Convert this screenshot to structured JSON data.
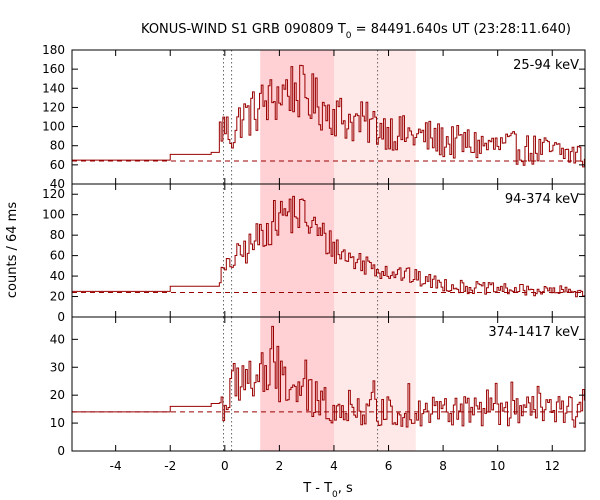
{
  "chart_data": {
    "type": "line",
    "title_main": "KONUS-WIND S1 GRB 090809 T",
    "title_sub": "0",
    "title_rest": " = 84491.640s UT (23:28:11.640)",
    "xlabel_main": "T - T",
    "xlabel_sub": "0",
    "xlabel_rest": ", s",
    "ylabel": "counts / 64 ms",
    "xlim": [
      -5.6,
      13.2
    ],
    "x_ticks": [
      -4,
      -2,
      0,
      2,
      4,
      6,
      8,
      10,
      12
    ],
    "x_tick_labels": [
      "-4",
      "-2",
      "0",
      "2",
      "4",
      "6",
      "8",
      "10",
      "12"
    ],
    "colors": {
      "data": "#990000",
      "light_band": "#ffe8e8",
      "dark_band": "#ffd0d4",
      "frame": "#000000"
    },
    "shaded_intervals": [
      {
        "start": 1.3,
        "end": 7.0,
        "tone": "light"
      },
      {
        "start": 1.3,
        "end": 4.0,
        "tone": "dark"
      }
    ],
    "vertical_markers": [
      {
        "x": -0.05,
        "style": "dotted"
      },
      {
        "x": 0.25,
        "style": "dotted"
      },
      {
        "x": 5.6,
        "style": "dotted"
      }
    ],
    "panels": [
      {
        "label": "25-94 keV",
        "ylim": [
          40,
          180
        ],
        "y_ticks": [
          40,
          60,
          80,
          100,
          120,
          140,
          160,
          180
        ],
        "y_tick_labels": [
          "40",
          "60",
          "80",
          "100",
          "120",
          "140",
          "160",
          "180"
        ],
        "background_level": 64,
        "series": [
          {
            "x": [
              -5.6,
              -2.0
            ],
            "y": [
              65,
              65
            ]
          },
          {
            "x": [
              -2.0,
              -0.5
            ],
            "y": [
              71,
              71
            ]
          },
          {
            "x": [
              -0.5,
              -0.2
            ],
            "y": [
              73,
              73
            ]
          },
          {
            "x": [
              -0.2,
              0.0,
              0.3,
              0.6,
              1.0,
              1.3,
              1.6,
              2.0,
              2.3,
              2.6,
              3.0,
              3.3,
              3.7,
              4.0,
              4.4,
              4.8,
              5.2,
              5.6,
              6.0,
              6.5,
              7.0,
              7.5,
              8.0,
              8.5,
              9.0,
              9.5,
              10.0,
              10.5,
              11.0,
              11.5,
              12.0,
              12.5,
              13.0,
              13.2
            ],
            "y": [
              95,
              100,
              90,
              110,
              113,
              122,
              125,
              133,
              140,
              138,
              132,
              126,
              118,
              115,
              107,
              105,
              103,
              100,
              97,
              92,
              90,
              88,
              85,
              83,
              82,
              80,
              79,
              78,
              76,
              75,
              74,
              72,
              70,
              68
            ]
          }
        ]
      },
      {
        "label": "94-374 keV",
        "ylim": [
          0,
          130
        ],
        "y_ticks": [
          0,
          20,
          40,
          60,
          80,
          100,
          120
        ],
        "y_tick_labels": [
          "0",
          "20",
          "40",
          "60",
          "80",
          "100",
          "120"
        ],
        "background_level": 24,
        "series": [
          {
            "x": [
              -5.6,
              -2.0
            ],
            "y": [
              25,
              25
            ]
          },
          {
            "x": [
              -2.0,
              -0.5
            ],
            "y": [
              30,
              30
            ]
          },
          {
            "x": [
              -0.5,
              -0.2
            ],
            "y": [
              30,
              30
            ]
          },
          {
            "x": [
              -0.2,
              0.0,
              0.3,
              0.6,
              1.0,
              1.3,
              1.6,
              2.0,
              2.3,
              2.6,
              3.0,
              3.3,
              3.7,
              4.0,
              4.4,
              4.8,
              5.2,
              5.6,
              6.0,
              6.5,
              7.0,
              7.5,
              8.0,
              8.5,
              9.0,
              9.5,
              10.0,
              10.5,
              11.0,
              11.5,
              12.0,
              12.5,
              13.0,
              13.2
            ],
            "y": [
              40,
              45,
              55,
              62,
              70,
              80,
              88,
              98,
              102,
              103,
              96,
              86,
              75,
              68,
              60,
              55,
              52,
              48,
              45,
              42,
              38,
              35,
              32,
              30,
              29,
              28,
              27,
              27,
              26,
              26,
              25,
              25,
              25,
              25
            ]
          }
        ]
      },
      {
        "label": "374-1417 keV",
        "ylim": [
          0,
          48
        ],
        "y_ticks": [
          0,
          10,
          20,
          30,
          40
        ],
        "y_tick_labels": [
          "0",
          "10",
          "20",
          "30",
          "40"
        ],
        "background_level": 14,
        "series": [
          {
            "x": [
              -5.6,
              -2.0
            ],
            "y": [
              14,
              14
            ]
          },
          {
            "x": [
              -2.0,
              -0.5
            ],
            "y": [
              16,
              16
            ]
          },
          {
            "x": [
              -0.5,
              -0.2
            ],
            "y": [
              17,
              17
            ]
          },
          {
            "x": [
              -0.2,
              0.0,
              0.3,
              0.6,
              1.0,
              1.3,
              1.6,
              2.0,
              2.3,
              2.6,
              3.0,
              3.3,
              3.7,
              4.0,
              4.4,
              4.8,
              5.2,
              5.6,
              6.0,
              6.5,
              7.0,
              7.5,
              8.0,
              8.5,
              9.0,
              9.5,
              10.0,
              10.5,
              11.0,
              11.5,
              12.0,
              12.5,
              13.0,
              13.2
            ],
            "y": [
              18,
              16,
              22,
              28,
              25,
              27,
              26,
              27,
              25,
              21,
              19,
              18,
              17,
              16,
              16,
              15,
              15,
              15,
              14,
              14,
              14,
              14,
              14,
              14,
              14,
              14,
              14,
              14,
              14,
              14,
              14,
              14,
              14,
              14
            ]
          }
        ]
      }
    ]
  }
}
